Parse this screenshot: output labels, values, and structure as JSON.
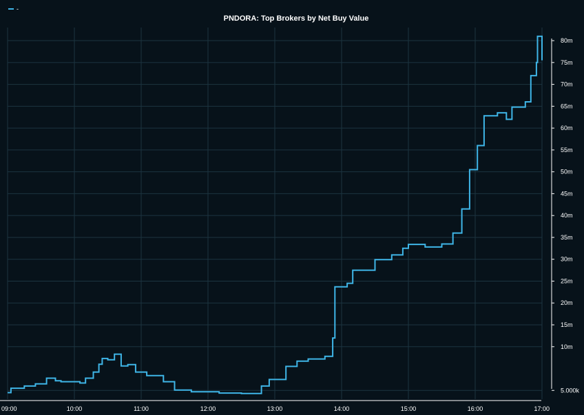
{
  "chart_data": {
    "type": "line",
    "title": "PNDORA: Top Brokers by Net Buy Value",
    "xlabel": "",
    "ylabel": "",
    "legend": {
      "entries": [
        {
          "label": "-",
          "color": "#3fb6e8"
        }
      ],
      "placement": "top-left"
    },
    "grid": true,
    "line_color": "#3fb6e8",
    "grid_color": "#1c3440",
    "background": "#07121a",
    "x_ticks": [
      "09:00",
      "10:00",
      "11:00",
      "12:00",
      "13:00",
      "14:00",
      "15:00",
      "16:00",
      "17:00"
    ],
    "y_ticks": [
      "5.000k",
      "10m",
      "15m",
      "20m",
      "25m",
      "30m",
      "35m",
      "40m",
      "45m",
      "50m",
      "55m",
      "60m",
      "65m",
      "70m",
      "75m",
      "80m"
    ],
    "xlim": [
      "09:00",
      "17:00"
    ],
    "ylim": [
      -2000000,
      83000000
    ],
    "series": [
      {
        "values": [
          {
            "x": "09:00",
            "y": -500000
          },
          {
            "x": "09:03",
            "y": 500000
          },
          {
            "x": "09:15",
            "y": 1000000
          },
          {
            "x": "09:25",
            "y": 1500000
          },
          {
            "x": "09:35",
            "y": 2800000
          },
          {
            "x": "09:43",
            "y": 2200000
          },
          {
            "x": "09:48",
            "y": 2000000
          },
          {
            "x": "10:05",
            "y": 1700000
          },
          {
            "x": "10:10",
            "y": 2800000
          },
          {
            "x": "10:17",
            "y": 4200000
          },
          {
            "x": "10:22",
            "y": 6000000
          },
          {
            "x": "10:25",
            "y": 7300000
          },
          {
            "x": "10:30",
            "y": 7000000
          },
          {
            "x": "10:36",
            "y": 8300000
          },
          {
            "x": "10:42",
            "y": 5600000
          },
          {
            "x": "10:48",
            "y": 5900000
          },
          {
            "x": "10:55",
            "y": 4200000
          },
          {
            "x": "11:05",
            "y": 3400000
          },
          {
            "x": "11:20",
            "y": 2000000
          },
          {
            "x": "11:30",
            "y": 100000
          },
          {
            "x": "11:45",
            "y": -300000
          },
          {
            "x": "12:10",
            "y": -600000
          },
          {
            "x": "12:30",
            "y": -700000
          },
          {
            "x": "12:40",
            "y": -700000
          },
          {
            "x": "12:48",
            "y": 1000000
          },
          {
            "x": "12:55",
            "y": 2500000
          },
          {
            "x": "13:10",
            "y": 5500000
          },
          {
            "x": "13:20",
            "y": 6700000
          },
          {
            "x": "13:30",
            "y": 7200000
          },
          {
            "x": "13:45",
            "y": 7800000
          },
          {
            "x": "13:52",
            "y": 12000000
          },
          {
            "x": "13:54",
            "y": 23700000
          },
          {
            "x": "14:05",
            "y": 24500000
          },
          {
            "x": "14:10",
            "y": 27500000
          },
          {
            "x": "14:30",
            "y": 29900000
          },
          {
            "x": "14:45",
            "y": 31000000
          },
          {
            "x": "14:55",
            "y": 32500000
          },
          {
            "x": "15:00",
            "y": 33400000
          },
          {
            "x": "15:15",
            "y": 32800000
          },
          {
            "x": "15:30",
            "y": 33500000
          },
          {
            "x": "15:40",
            "y": 36000000
          },
          {
            "x": "15:48",
            "y": 41500000
          },
          {
            "x": "15:55",
            "y": 50500000
          },
          {
            "x": "16:02",
            "y": 56000000
          },
          {
            "x": "16:08",
            "y": 62800000
          },
          {
            "x": "16:20",
            "y": 63500000
          },
          {
            "x": "16:28",
            "y": 62000000
          },
          {
            "x": "16:33",
            "y": 64800000
          },
          {
            "x": "16:45",
            "y": 66000000
          },
          {
            "x": "16:50",
            "y": 72000000
          },
          {
            "x": "16:55",
            "y": 75000000
          },
          {
            "x": "16:56",
            "y": 81000000
          },
          {
            "x": "17:00",
            "y": 75500000
          }
        ]
      }
    ]
  }
}
